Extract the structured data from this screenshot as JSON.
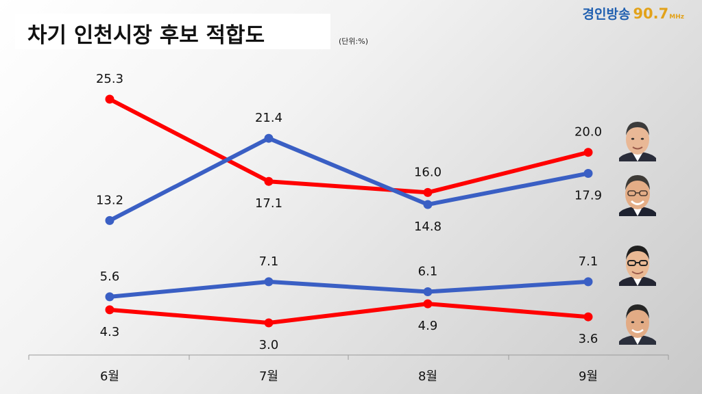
{
  "header": {
    "title": "차기 인천시장 후보 적합도",
    "unit": "(단위:%)"
  },
  "brand": {
    "name": "경인방송",
    "freq": "90.7",
    "unit": "MHz",
    "name_color": "#1f5fb0",
    "freq_color": "#e2a21a"
  },
  "colors": {
    "red": "#ff0000",
    "blue": "#3a5fc4"
  },
  "chart_data": {
    "type": "line",
    "categories": [
      "6월",
      "7월",
      "8월",
      "9월"
    ],
    "series": [
      {
        "color": "#ff0000",
        "values": [
          25.3,
          17.1,
          16.0,
          20.0
        ]
      },
      {
        "color": "#3a5fc4",
        "values": [
          13.2,
          21.4,
          14.8,
          17.9
        ]
      },
      {
        "color": "#3a5fc4",
        "values": [
          5.6,
          7.1,
          6.1,
          7.1
        ]
      },
      {
        "color": "#ff0000",
        "values": [
          4.3,
          3.0,
          4.9,
          3.6
        ]
      }
    ],
    "value_labels": [
      [
        "25.3",
        "17.1",
        "16.0",
        "20.0"
      ],
      [
        "13.2",
        "21.4",
        "14.8",
        "17.9"
      ],
      [
        "5.6",
        "7.1",
        "6.1",
        "7.1"
      ],
      [
        "4.3",
        "3.0",
        "4.9",
        "3.6"
      ]
    ],
    "ylim": [
      0,
      27
    ],
    "grid": false,
    "legend": "none"
  },
  "candidates": [
    {
      "icon": "candidate-photo-1",
      "series_index": 0
    },
    {
      "icon": "candidate-photo-2",
      "series_index": 1
    },
    {
      "icon": "candidate-photo-3",
      "series_index": 2
    },
    {
      "icon": "candidate-photo-4",
      "series_index": 3
    }
  ]
}
